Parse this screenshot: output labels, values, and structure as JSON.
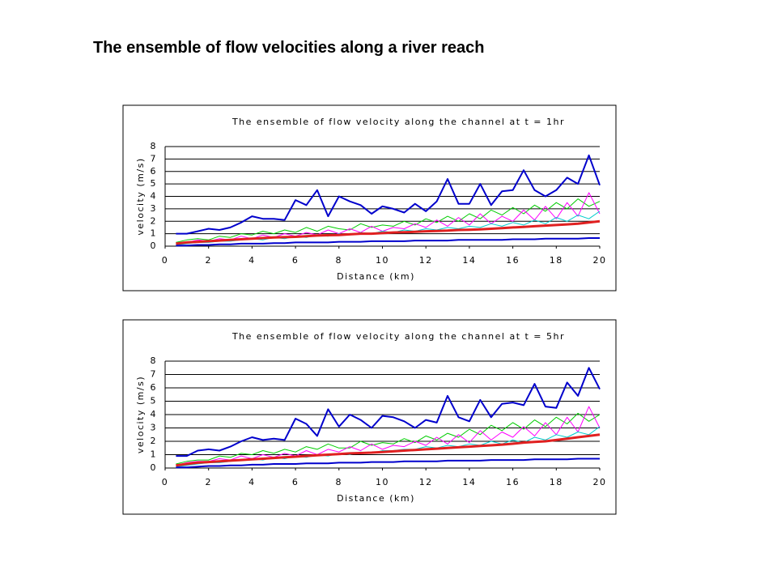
{
  "slide_title": "The ensemble of flow velocities along a river reach",
  "chart_data": [
    {
      "type": "line",
      "title": "The ensemble of flow velocity along the channel at t = 1hr",
      "x_label": "Distance (km)",
      "y_label": "velocity (m/s)",
      "xlim": [
        0,
        20
      ],
      "xticks": [
        0,
        2,
        4,
        6,
        8,
        10,
        12,
        14,
        16,
        18,
        20
      ],
      "ylim": [
        0,
        8
      ],
      "yticks": [
        0,
        1,
        2,
        3,
        4,
        5,
        6,
        7,
        8
      ],
      "grid": true,
      "x": [
        0.5,
        1,
        1.5,
        2,
        2.5,
        3,
        3.5,
        4,
        4.5,
        5,
        5.5,
        6,
        6.5,
        7,
        7.5,
        8,
        8.5,
        9,
        9.5,
        10,
        10.5,
        11,
        11.5,
        12,
        12.5,
        13,
        13.5,
        14,
        14.5,
        15,
        15.5,
        16,
        16.5,
        17,
        17.5,
        18,
        18.5,
        19,
        19.5,
        20
      ],
      "series": [
        {
          "color": "#00cc00",
          "width": 1,
          "values": [
            0.3,
            0.5,
            0.6,
            0.5,
            0.8,
            0.7,
            1.0,
            0.9,
            1.2,
            1.0,
            1.3,
            1.1,
            1.5,
            1.2,
            1.6,
            1.4,
            1.3,
            1.8,
            1.5,
            1.7,
            1.6,
            2.0,
            1.7,
            2.2,
            1.9,
            2.4,
            2.0,
            2.6,
            2.2,
            2.9,
            2.5,
            3.1,
            2.6,
            3.3,
            2.8,
            3.5,
            3.0,
            3.8,
            3.2,
            3.6
          ]
        },
        {
          "color": "#ff00ff",
          "width": 1,
          "values": [
            0.2,
            0.3,
            0.5,
            0.4,
            0.6,
            0.5,
            0.8,
            0.6,
            0.9,
            0.7,
            1.0,
            0.8,
            1.1,
            0.9,
            1.3,
            1.0,
            1.4,
            1.1,
            1.6,
            1.2,
            1.5,
            1.4,
            1.8,
            1.5,
            2.1,
            1.6,
            2.3,
            1.7,
            2.6,
            1.8,
            2.4,
            2.0,
            2.9,
            2.1,
            3.2,
            2.2,
            3.5,
            2.4,
            4.3,
            2.6
          ]
        },
        {
          "color": "#00cccc",
          "width": 1,
          "values": [
            0.1,
            0.2,
            0.3,
            0.3,
            0.4,
            0.4,
            0.5,
            0.6,
            0.5,
            0.7,
            0.6,
            0.8,
            0.7,
            0.9,
            0.8,
            1.0,
            0.9,
            1.1,
            1.0,
            1.2,
            1.1,
            1.3,
            1.2,
            1.4,
            1.3,
            1.5,
            1.4,
            1.6,
            1.5,
            1.8,
            1.6,
            1.9,
            1.7,
            2.1,
            1.8,
            2.3,
            2.0,
            2.5,
            2.2,
            2.8
          ]
        },
        {
          "color": "#0000cc",
          "width": 2,
          "values": [
            0.05,
            0.05,
            0.1,
            0.1,
            0.15,
            0.15,
            0.2,
            0.2,
            0.2,
            0.25,
            0.25,
            0.3,
            0.3,
            0.3,
            0.3,
            0.35,
            0.35,
            0.35,
            0.4,
            0.4,
            0.4,
            0.4,
            0.45,
            0.45,
            0.45,
            0.45,
            0.5,
            0.5,
            0.5,
            0.5,
            0.5,
            0.55,
            0.55,
            0.55,
            0.6,
            0.6,
            0.6,
            0.6,
            0.65,
            0.65
          ]
        },
        {
          "color": "#0000cc",
          "width": 2,
          "values": [
            1.0,
            1.0,
            1.2,
            1.4,
            1.3,
            1.5,
            1.9,
            2.4,
            2.2,
            2.2,
            2.1,
            3.7,
            3.3,
            4.5,
            2.4,
            4.0,
            3.6,
            3.3,
            2.6,
            3.2,
            3.0,
            2.7,
            3.4,
            2.8,
            3.6,
            5.4,
            3.4,
            3.4,
            5.0,
            3.3,
            4.4,
            4.5,
            6.1,
            4.5,
            4.0,
            4.5,
            5.5,
            5.0,
            7.3,
            4.9
          ]
        },
        {
          "color": "#e02020",
          "width": 3,
          "values": [
            0.2,
            0.3,
            0.35,
            0.4,
            0.45,
            0.5,
            0.55,
            0.6,
            0.65,
            0.7,
            0.72,
            0.75,
            0.8,
            0.85,
            0.88,
            0.9,
            0.95,
            1.0,
            1.0,
            1.05,
            1.1,
            1.12,
            1.15,
            1.2,
            1.22,
            1.25,
            1.3,
            1.32,
            1.35,
            1.4,
            1.45,
            1.5,
            1.55,
            1.6,
            1.65,
            1.7,
            1.75,
            1.8,
            1.9,
            2.0
          ]
        }
      ]
    },
    {
      "type": "line",
      "title": "The ensemble of flow velocity along the channel at t = 5hr",
      "x_label": "Distance (km)",
      "y_label": "velocity (m/s)",
      "xlim": [
        0,
        20
      ],
      "xticks": [
        0,
        2,
        4,
        6,
        8,
        10,
        12,
        14,
        16,
        18,
        20
      ],
      "ylim": [
        0,
        8
      ],
      "yticks": [
        0,
        1,
        2,
        3,
        4,
        5,
        6,
        7,
        8
      ],
      "grid": true,
      "x": [
        0.5,
        1,
        1.5,
        2,
        2.5,
        3,
        3.5,
        4,
        4.5,
        5,
        5.5,
        6,
        6.5,
        7,
        7.5,
        8,
        8.5,
        9,
        9.5,
        10,
        10.5,
        11,
        11.5,
        12,
        12.5,
        13,
        13.5,
        14,
        14.5,
        15,
        15.5,
        16,
        16.5,
        17,
        17.5,
        18,
        18.5,
        19,
        19.5,
        20
      ],
      "series": [
        {
          "color": "#00cc00",
          "width": 1,
          "values": [
            0.3,
            0.5,
            0.6,
            0.6,
            0.9,
            0.8,
            1.1,
            1.0,
            1.3,
            1.1,
            1.4,
            1.2,
            1.6,
            1.4,
            1.8,
            1.5,
            1.5,
            2.0,
            1.7,
            1.9,
            1.8,
            2.2,
            1.9,
            2.4,
            2.1,
            2.6,
            2.3,
            2.9,
            2.5,
            3.2,
            2.8,
            3.4,
            2.9,
            3.6,
            3.1,
            3.8,
            3.3,
            4.1,
            3.5,
            4.0
          ]
        },
        {
          "color": "#ff00ff",
          "width": 1,
          "values": [
            0.2,
            0.4,
            0.5,
            0.5,
            0.7,
            0.6,
            0.9,
            0.7,
            1.0,
            0.8,
            1.1,
            0.9,
            1.3,
            1.0,
            1.4,
            1.2,
            1.6,
            1.3,
            1.8,
            1.4,
            1.7,
            1.6,
            2.0,
            1.7,
            2.3,
            1.8,
            2.5,
            1.9,
            2.8,
            2.1,
            2.7,
            2.3,
            3.1,
            2.4,
            3.4,
            2.5,
            3.8,
            2.7,
            4.6,
            3.0
          ]
        },
        {
          "color": "#00cccc",
          "width": 1,
          "values": [
            0.1,
            0.2,
            0.3,
            0.4,
            0.4,
            0.5,
            0.6,
            0.7,
            0.6,
            0.8,
            0.7,
            0.9,
            0.8,
            1.0,
            0.9,
            1.1,
            1.0,
            1.2,
            1.1,
            1.3,
            1.3,
            1.4,
            1.4,
            1.6,
            1.5,
            1.7,
            1.6,
            1.8,
            1.7,
            2.0,
            1.8,
            2.1,
            1.9,
            2.3,
            2.1,
            2.5,
            2.3,
            2.7,
            2.5,
            3.1
          ]
        },
        {
          "color": "#0000cc",
          "width": 2,
          "values": [
            0.05,
            0.05,
            0.1,
            0.15,
            0.15,
            0.2,
            0.2,
            0.25,
            0.25,
            0.3,
            0.3,
            0.3,
            0.35,
            0.35,
            0.35,
            0.4,
            0.4,
            0.4,
            0.45,
            0.45,
            0.45,
            0.5,
            0.5,
            0.5,
            0.5,
            0.55,
            0.55,
            0.55,
            0.55,
            0.6,
            0.6,
            0.6,
            0.6,
            0.65,
            0.65,
            0.65,
            0.65,
            0.7,
            0.7,
            0.7
          ]
        },
        {
          "color": "#0000cc",
          "width": 2,
          "values": [
            0.9,
            0.9,
            1.3,
            1.4,
            1.3,
            1.6,
            2.0,
            2.3,
            2.1,
            2.2,
            2.1,
            3.7,
            3.3,
            2.4,
            4.4,
            3.1,
            4.0,
            3.6,
            3.0,
            3.9,
            3.8,
            3.5,
            3.0,
            3.6,
            3.4,
            5.4,
            3.8,
            3.5,
            5.1,
            3.8,
            4.8,
            4.9,
            4.7,
            6.3,
            4.6,
            4.5,
            6.4,
            5.4,
            7.5,
            5.9
          ]
        },
        {
          "color": "#e02020",
          "width": 3,
          "values": [
            0.2,
            0.3,
            0.4,
            0.45,
            0.5,
            0.55,
            0.6,
            0.65,
            0.7,
            0.75,
            0.8,
            0.85,
            0.9,
            0.95,
            1.0,
            1.05,
            1.1,
            1.12,
            1.15,
            1.2,
            1.25,
            1.3,
            1.35,
            1.4,
            1.45,
            1.5,
            1.55,
            1.6,
            1.65,
            1.7,
            1.75,
            1.82,
            1.9,
            1.95,
            2.0,
            2.1,
            2.2,
            2.3,
            2.4,
            2.5
          ]
        }
      ]
    }
  ]
}
